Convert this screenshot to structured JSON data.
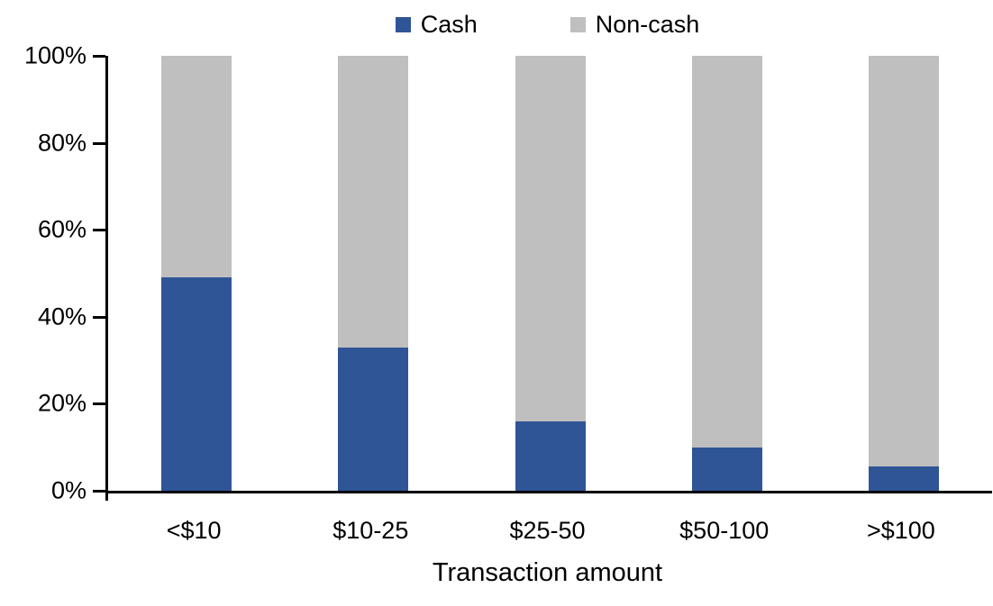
{
  "chart_data": {
    "type": "bar",
    "variant": "stacked-100-percent",
    "title": "",
    "xlabel": "Transaction amount",
    "ylabel": "",
    "categories": [
      "<$10",
      "$10-25",
      "$25-50",
      "$50-100",
      ">$100"
    ],
    "series": [
      {
        "name": "Cash",
        "color": "#2F5597",
        "values": [
          49,
          33,
          16,
          10,
          5.5
        ]
      },
      {
        "name": "Non-cash",
        "color": "#BFBFBF",
        "values": [
          51,
          67,
          84,
          90,
          94.5
        ]
      }
    ],
    "ylim": [
      0,
      100
    ],
    "ytick_labels": [
      "0%",
      "20%",
      "40%",
      "60%",
      "80%",
      "100%"
    ],
    "grid": false,
    "legend_position": "top-center",
    "axis_color": "#000000",
    "background_color": "#FFFFFF"
  }
}
